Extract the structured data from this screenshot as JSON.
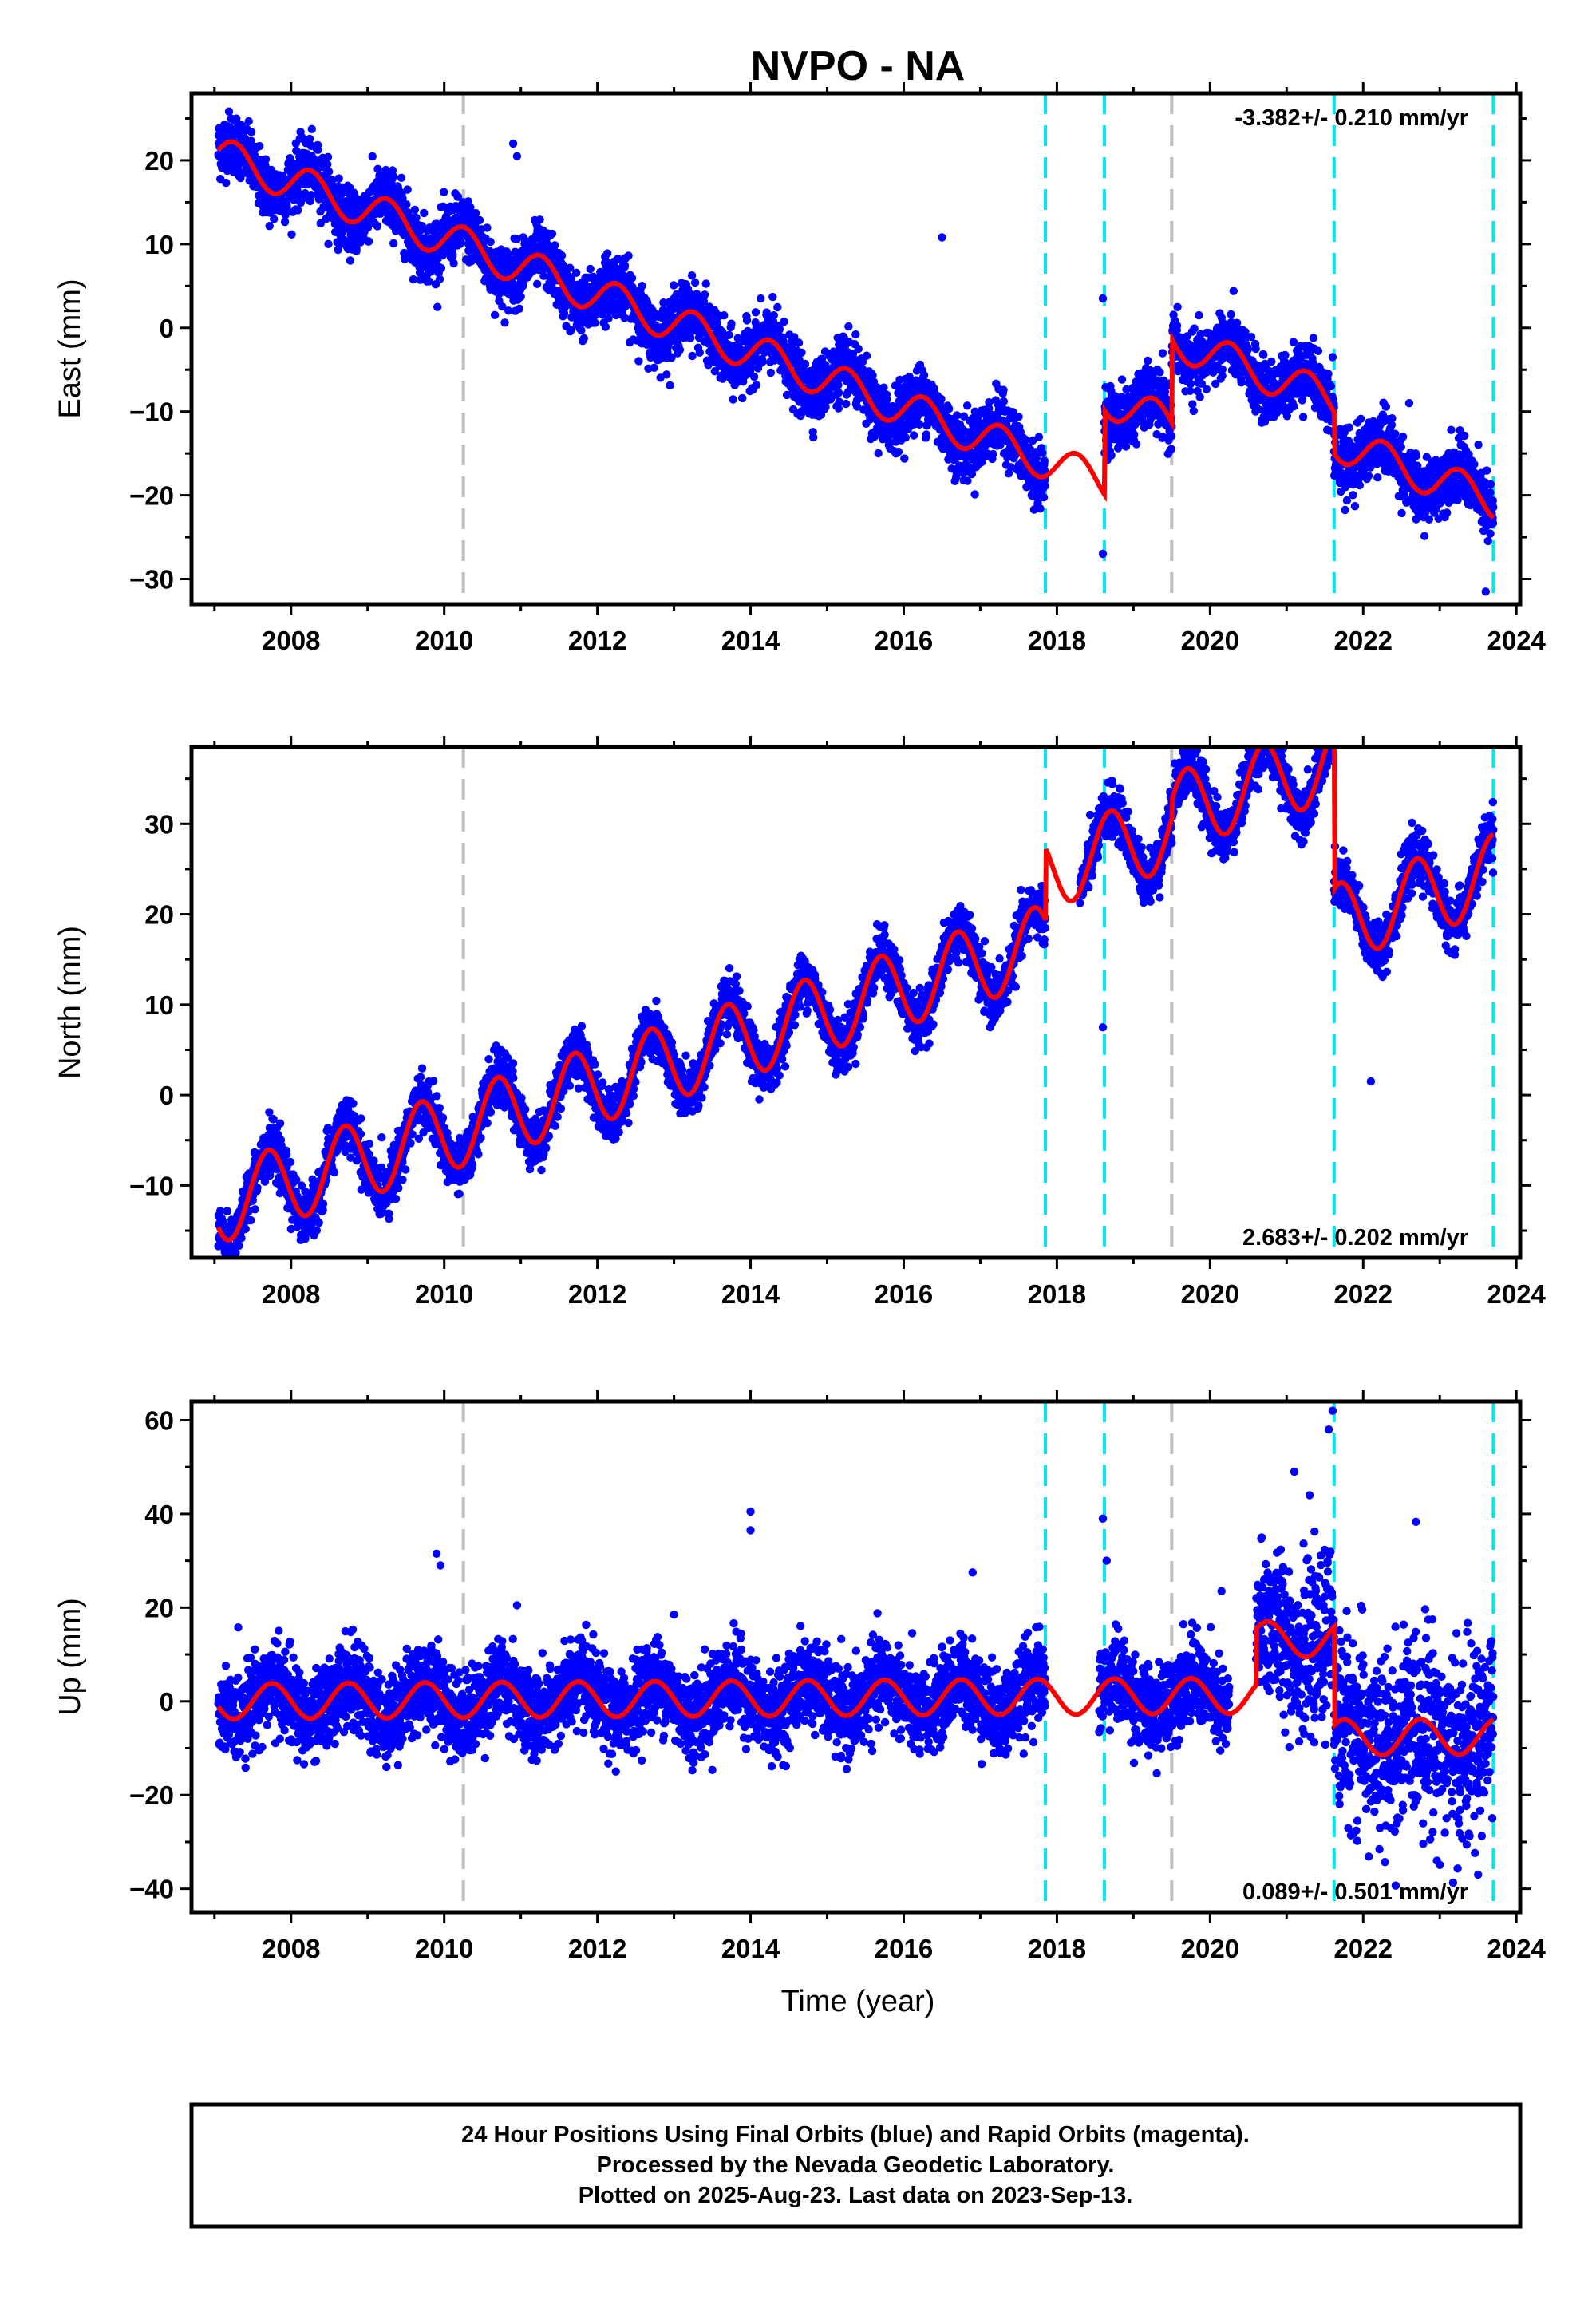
{
  "title": "NVPO - NA",
  "xlabel": "Time (year)",
  "footer": {
    "line1": "24 Hour Positions Using Final Orbits (blue) and Rapid Orbits (magenta).",
    "line2": "Processed by the Nevada Geodetic Laboratory.",
    "line3": "Plotted on 2025-Aug-23. Last data on 2023-Sep-13."
  },
  "colors": {
    "data_points": "#0000ff",
    "model_fit": "#ff0000",
    "equipment_change": "#00e5ee",
    "earthquake_event": "#c0c0c0"
  },
  "chart_data": [
    {
      "type": "scatter",
      "name": "east",
      "ylabel": "East (mm)",
      "rate": "-3.382+/- 0.210 mm/yr",
      "rate_position": "top-right",
      "xlim": [
        2006.7,
        2024.05
      ],
      "ylim": [
        -33,
        28
      ],
      "xticks": [
        2008,
        2010,
        2012,
        2014,
        2016,
        2018,
        2020,
        2022,
        2024
      ],
      "yticks": [
        -30,
        -20,
        -10,
        0,
        10,
        20
      ],
      "trend": {
        "t0": 2007.1,
        "y0": 20.5,
        "slope": -3.382,
        "annual_amp": 2.2,
        "scatter": 1.8
      },
      "gaps": [
        [
          2017.85,
          2018.62
        ]
      ],
      "offsets": [
        {
          "x": 2018.62,
          "dy": 10
        },
        {
          "x": 2019.5,
          "dy": 10
        },
        {
          "x": 2021.62,
          "dy": -5
        }
      ],
      "outliers": [
        [
          2010.9,
          22
        ],
        [
          2010.95,
          20.5
        ],
        [
          2016.5,
          10.8
        ],
        [
          2018.6,
          3.5
        ],
        [
          2018.6,
          -27
        ],
        [
          2022.6,
          -9
        ],
        [
          2021.6,
          -3.5
        ],
        [
          2023.6,
          -31.5
        ]
      ],
      "ann": 18
    },
    {
      "type": "scatter",
      "name": "north",
      "ylabel": "North (mm)",
      "rate": "2.683+/- 0.202 mm/yr",
      "rate_position": "bottom-right",
      "xlim": [
        2006.7,
        2024.05
      ],
      "ylim": [
        -18,
        38.5
      ],
      "xticks": [
        2008,
        2010,
        2012,
        2014,
        2016,
        2018,
        2020,
        2022,
        2024
      ],
      "yticks": [
        -10,
        0,
        10,
        20,
        30
      ],
      "trend": {
        "t0": 2007.1,
        "y0": -12,
        "slope": 2.683,
        "annual_amp": 4.3,
        "scatter": 1.4
      },
      "gaps": [
        [
          2017.85,
          2018.3
        ]
      ],
      "offsets": [
        {
          "x": 2017.85,
          "dy": 8
        },
        {
          "x": 2019.5,
          "dy": 2
        },
        {
          "x": 2021.62,
          "dy": -18
        }
      ],
      "outliers": [
        [
          2010.9,
          3.5
        ],
        [
          2021.6,
          37
        ],
        [
          2020.6,
          35.5
        ],
        [
          2022.1,
          1.5
        ],
        [
          2018.6,
          7.5
        ]
      ],
      "ann": 0.55
    },
    {
      "type": "scatter",
      "name": "up",
      "ylabel": "Up (mm)",
      "rate": "0.089+/- 0.501 mm/yr",
      "rate_position": "bottom-right",
      "xlim": [
        2006.7,
        2024.05
      ],
      "ylim": [
        -45,
        64
      ],
      "xticks": [
        2008,
        2010,
        2012,
        2014,
        2016,
        2018,
        2020,
        2022,
        2024
      ],
      "yticks": [
        -40,
        -20,
        0,
        20,
        40,
        60
      ],
      "trend": {
        "t0": 2007.1,
        "y0": 0,
        "slope": 0.089,
        "annual_amp": 3.8,
        "scatter": 4.5
      },
      "gaps": [
        [
          2017.85,
          2018.55
        ],
        [
          2020.25,
          2020.6
        ]
      ],
      "offsets": [
        {
          "x": 2020.6,
          "dy": 12
        },
        {
          "x": 2021.62,
          "dy": -21
        }
      ],
      "outliers": [
        [
          2014.0,
          40.5
        ],
        [
          2014.0,
          36.5
        ],
        [
          2009.9,
          31.5
        ],
        [
          2009.95,
          29
        ],
        [
          2010.95,
          20.5
        ],
        [
          2013.0,
          18.5
        ],
        [
          2016.9,
          27.5
        ],
        [
          2018.6,
          39
        ],
        [
          2018.65,
          30
        ],
        [
          2021.6,
          62
        ],
        [
          2021.55,
          58
        ],
        [
          2021.1,
          49
        ],
        [
          2021.3,
          44
        ],
        [
          2023.5,
          -37
        ],
        [
          2020.15,
          23.5
        ]
      ],
      "ann": 0.5
    }
  ],
  "event_lines": {
    "equipment_change": [
      2017.85,
      2018.62,
      2021.62,
      2023.7
    ],
    "earthquake_event": [
      2010.25,
      2019.5
    ]
  }
}
